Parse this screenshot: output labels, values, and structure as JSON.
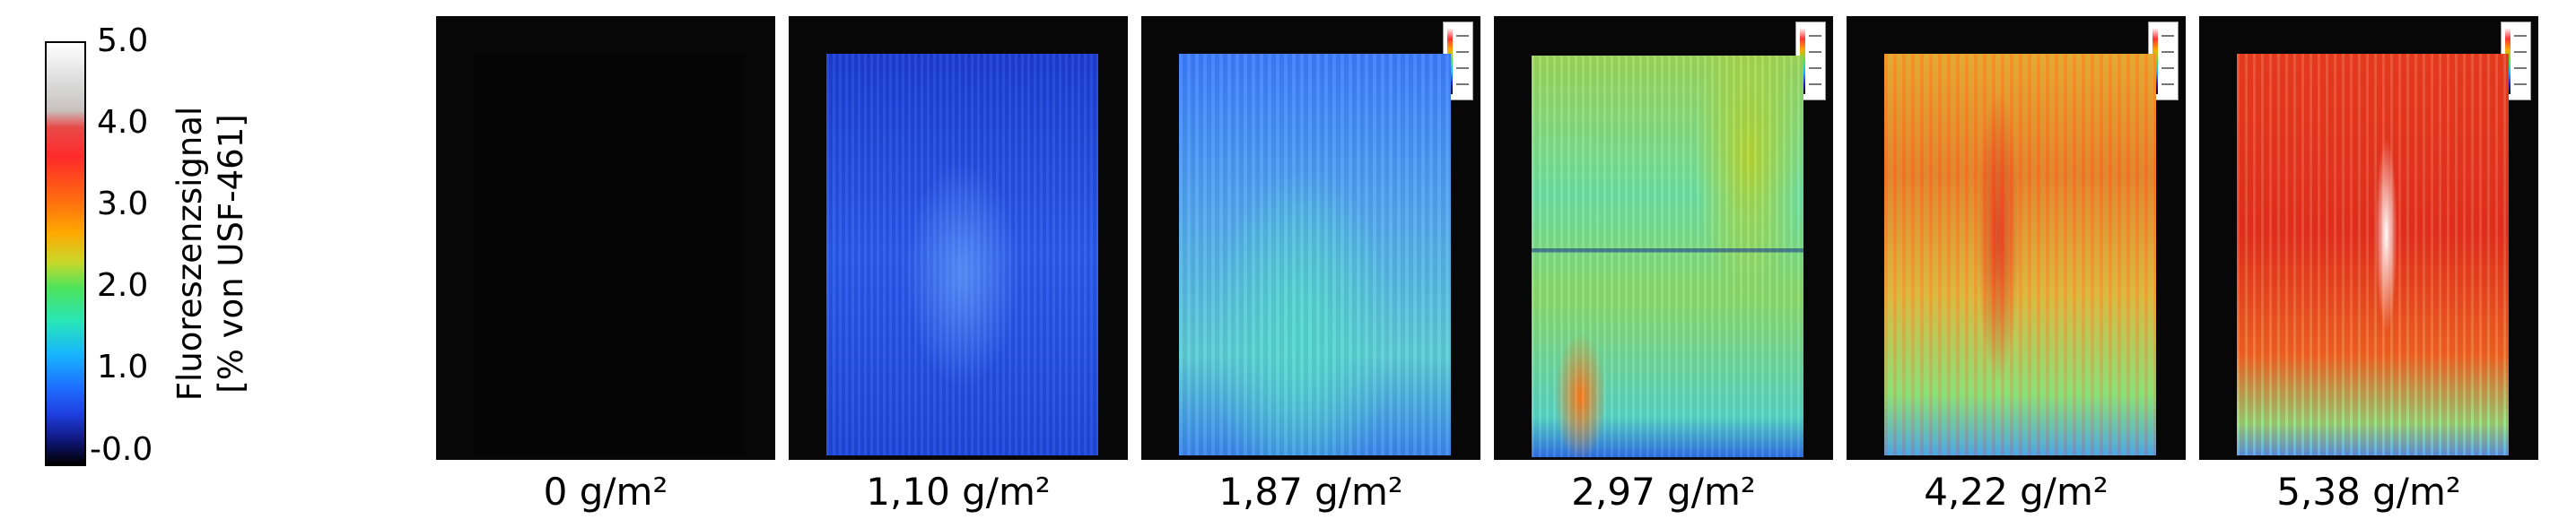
{
  "colorbar": {
    "ticks": [
      "5.0",
      "4.0",
      "3.0",
      "2.0",
      "1.0",
      "-0.0"
    ],
    "title_line1": "Fluoreszenzsignal",
    "title_line2": "[% von USF-461]"
  },
  "samples": [
    {
      "label": "0 g/m²",
      "level": 0.0
    },
    {
      "label": "1,10 g/m²",
      "level": 1.0
    },
    {
      "label": "1,87 g/m²",
      "level": 1.5
    },
    {
      "label": "2,97 g/m²",
      "level": 2.2
    },
    {
      "label": "4,22 g/m²",
      "level": 2.8
    },
    {
      "label": "5,38 g/m²",
      "level": 3.3
    }
  ],
  "colors": {
    "background": "#070707",
    "low": "#000000",
    "blue": "#1e6cff",
    "cyan": "#28e6b6",
    "green": "#4fe35b",
    "orange": "#ffa800",
    "red": "#ff2a2a",
    "high": "#ffffff"
  }
}
